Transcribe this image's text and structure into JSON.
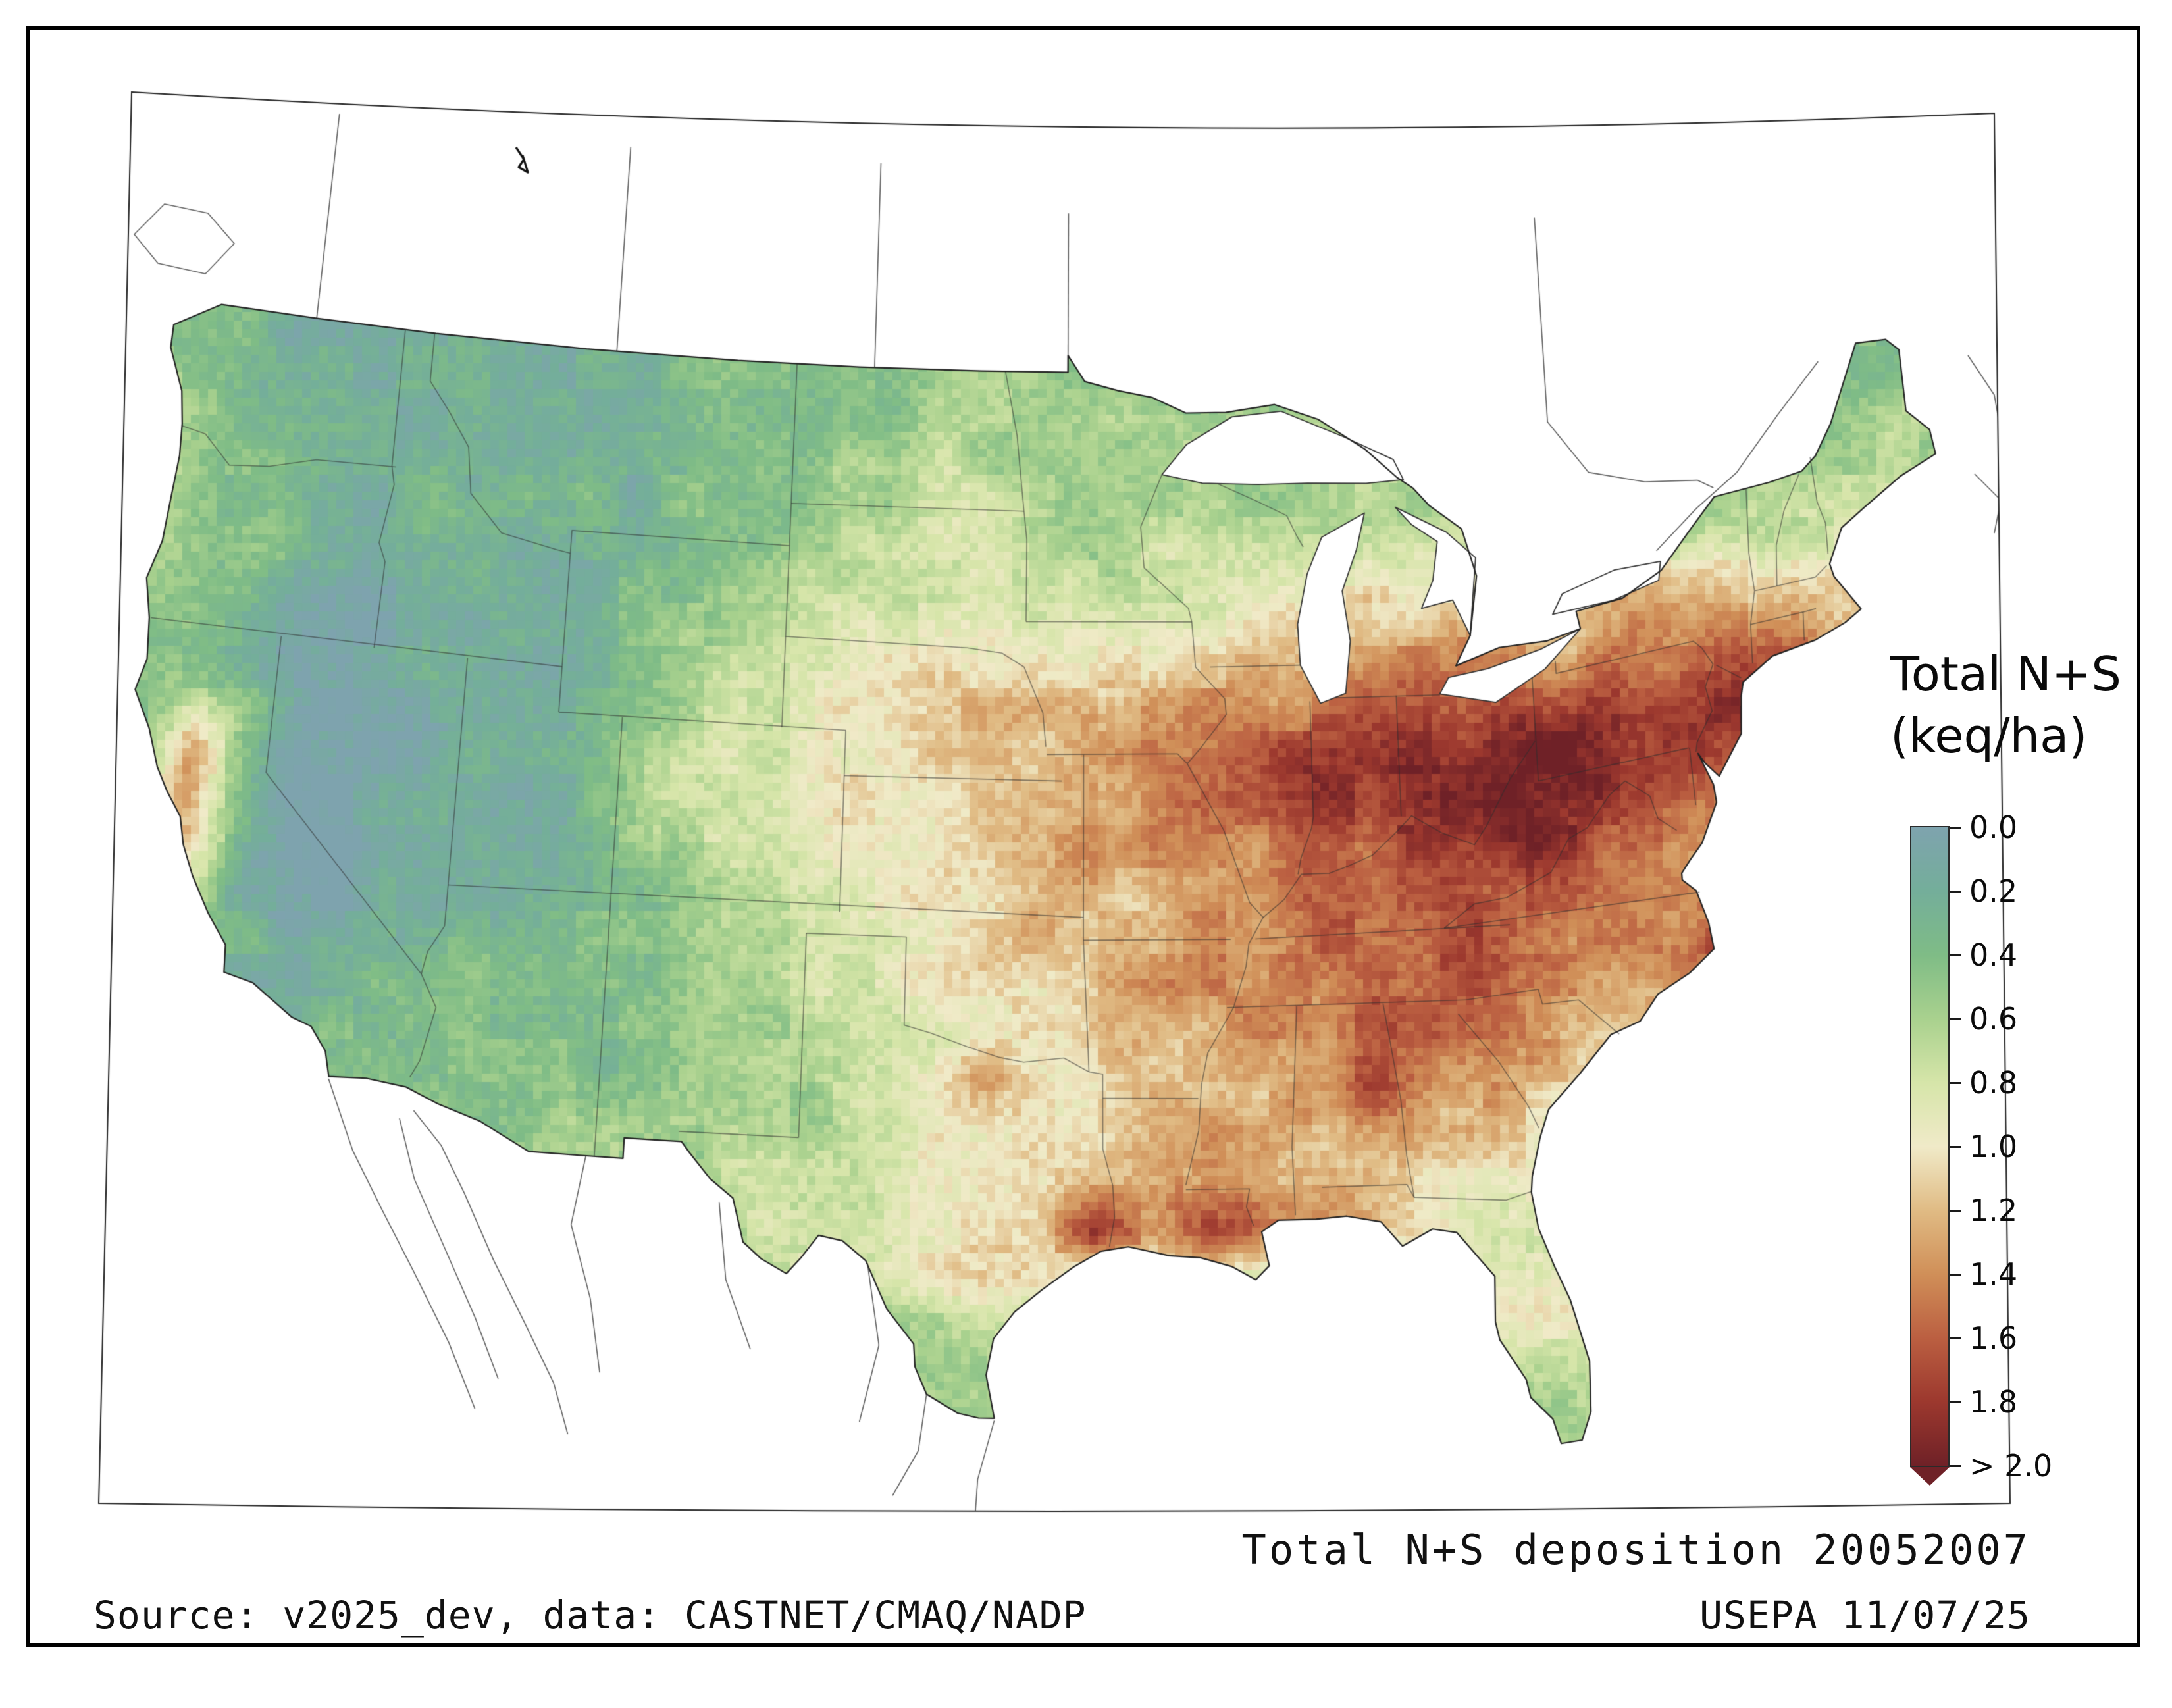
{
  "figure": {
    "caption": "Total N+S deposition 20052007",
    "source_note": "Source: v2025_dev, data: CASTNET/CMAQ/NADP",
    "agency_note": "USEPA 11/07/25"
  },
  "legend": {
    "title_line1": "Total N+S",
    "title_line2": "(keq/ha)",
    "tick_labels": [
      "0.0",
      "0.2",
      "0.4",
      "0.6",
      "0.8",
      "1.0",
      "1.2",
      "1.4",
      "1.6",
      "1.8",
      "> 2.0"
    ]
  },
  "chart_data": {
    "type": "heatmap",
    "title": "Total N+S deposition 20052007",
    "variable": "Total N+S deposition",
    "units": "keq/ha",
    "period": "20052007",
    "colorbar": {
      "min": 0.0,
      "max": 2.0,
      "tick_values": [
        0.0,
        0.2,
        0.4,
        0.6,
        0.8,
        1.0,
        1.2,
        1.4,
        1.6,
        1.8,
        2.0
      ],
      "tick_labels": [
        "0.0",
        "0.2",
        "0.4",
        "0.6",
        "0.8",
        "1.0",
        "1.2",
        "1.4",
        "1.6",
        "1.8",
        "> 2.0"
      ],
      "colors": [
        "#7EA3AE",
        "#74AE9A",
        "#7FBC86",
        "#A9D18E",
        "#D6E5A9",
        "#F0EAC8",
        "#E0BB84",
        "#D08F58",
        "#BB5F41",
        "#9C382E",
        "#6F2127"
      ]
    },
    "grid": {
      "rows": 24,
      "cols": 36,
      "encoding": "char 0-9,a = deposition code; deposition keq/ha = code*0.2 (a = >2.0); row 0 = north (~49N), col 0 = west (~125W)",
      "values": [
        "221111111122222333222222222222222222",
        "221111111122222333333333333333222222",
        "321111111122233433333333333333333222",
        "322112122122233443333333333333332333",
        "322112211122334444344444444543333333",
        "322111111223344444444556555665544444",
        "321001111233445555556666777677665555",
        "221001111234455666677778888887886655",
        "23200011123445566677789999aa99998655",
        "262000111244455566678899aaaa99997544",
        "37200111123445556677778899a988776544",
        "362001111223445556667788888877765444",
        "251001112223344566667788898777875444",
        "232111222223344555677778887778a95444",
        "321112222223334455666778887666654444",
        "211122222223334575566679776555444444",
        "211122222333334555567767665554444444",
        "111222223333444555667666555444444444",
        "111222222333444556979876545444444444",
        "111122222333344565555444444444444444",
        "111122222222333344444444455444444444",
        "111112222222223333334444444454444444",
        "111112222222223333333333333454444444",
        "111112222222222333333333333344444444"
      ]
    }
  }
}
